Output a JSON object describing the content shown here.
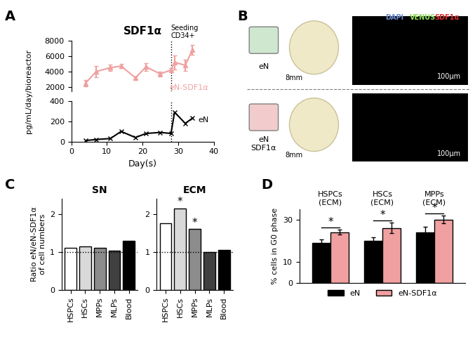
{
  "chart_data": [
    {
      "panel": "A",
      "type": "line",
      "title": "SDF1α",
      "x_label": "Day(s)",
      "y_label": "pg/mL/day/bioreactor",
      "annotation": {
        "x": 28,
        "text": "Seeding\nCD34+"
      },
      "xlim": [
        0,
        40
      ],
      "xticks": [
        0,
        10,
        20,
        30,
        40
      ],
      "axes": [
        {
          "ylim": [
            1500,
            8000
          ],
          "yticks": [
            2000,
            4000,
            6000,
            8000
          ],
          "series": [
            {
              "name": "eN-SDF1α",
              "color": "#f0a0a0",
              "marker": "^",
              "x": [
                4,
                7,
                11,
                14,
                18,
                21,
                25,
                28,
                29,
                32,
                34
              ],
              "values": [
                2500,
                4000,
                4500,
                4700,
                3200,
                4600,
                3700,
                4200,
                5200,
                4800,
                6800
              ],
              "errors": [
                400,
                700,
                400,
                300,
                200,
                500,
                300,
                200,
                900,
                700,
                600
              ]
            }
          ]
        },
        {
          "ylim": [
            0,
            400
          ],
          "yticks": [
            0,
            200,
            400
          ],
          "series": [
            {
              "name": "eN",
              "color": "#000000",
              "marker": "x",
              "x": [
                4,
                7,
                11,
                14,
                18,
                21,
                25,
                28,
                29,
                32,
                34
              ],
              "values": [
                10,
                20,
                30,
                100,
                40,
                80,
                90,
                80,
                290,
                180,
                230
              ]
            }
          ]
        }
      ]
    },
    {
      "panel": "B",
      "type": "image",
      "channels": [
        {
          "name": "DAPI",
          "color": "#6f8fd8"
        },
        {
          "name": "VENUS",
          "color": "#8fe05a"
        },
        {
          "name": "SDF1α",
          "color": "#e03030"
        }
      ],
      "rows": [
        {
          "label": "eN",
          "scale_bar": "8mm",
          "micro_scale_bar": "100μm"
        },
        {
          "label": "eN\nSDF1α",
          "scale_bar": "8mm",
          "micro_scale_bar": "100μm"
        }
      ]
    },
    {
      "panel": "C",
      "type": "bar",
      "y_label": "Ratio eN/eN-SDF1α\nof cell numbers",
      "categories": [
        "HSPCs",
        "HSCs",
        "MPPs",
        "MLPs",
        "Blood"
      ],
      "colors": [
        "#ffffff",
        "#d9d9d9",
        "#8c8c8c",
        "#404040",
        "#000000"
      ],
      "ylim": [
        0,
        2.4
      ],
      "yticks": [
        0,
        1,
        2
      ],
      "reference": 1,
      "subcharts": [
        {
          "title": "SN",
          "values": [
            1.1,
            1.15,
            1.1,
            1.03,
            1.3
          ],
          "significance": [
            null,
            null,
            null,
            null,
            null
          ]
        },
        {
          "title": "ECM",
          "values": [
            1.75,
            2.15,
            1.6,
            1.0,
            1.05
          ],
          "significance": [
            null,
            "*",
            "*",
            null,
            null
          ]
        }
      ]
    },
    {
      "panel": "D",
      "type": "bar",
      "y_label": "% cells in G0 phase",
      "categories": [
        "HSPCs\n(ECM)",
        "HSCs\n(ECM)",
        "MPPs\n(ECM)"
      ],
      "series": [
        {
          "name": "eN",
          "color": "#000000",
          "values": [
            19,
            20,
            24
          ],
          "errors": [
            1.5,
            1.5,
            2.5
          ]
        },
        {
          "name": "eN-SDF1α",
          "color": "#f0a0a0",
          "values": [
            24,
            26,
            30
          ],
          "errors": [
            1.2,
            2.5,
            1.8
          ]
        }
      ],
      "significance": [
        "*",
        "*",
        "*"
      ],
      "ylim": [
        0,
        35
      ],
      "yticks": [
        0,
        10,
        30
      ],
      "legend": "lower center",
      "tick_labels": "y"
    }
  ]
}
